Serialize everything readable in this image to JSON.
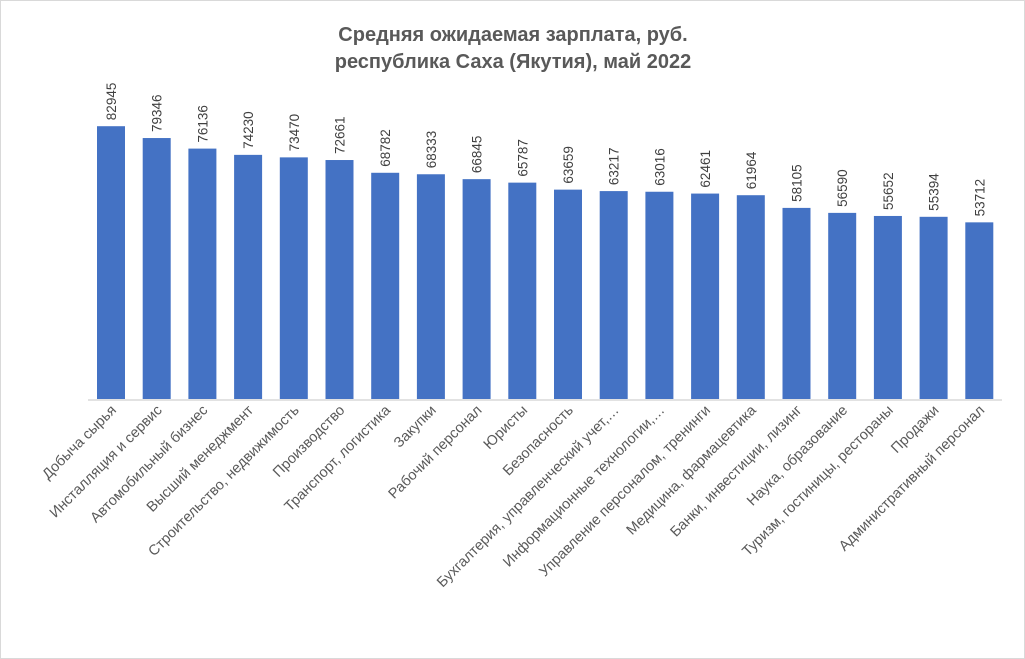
{
  "chart_data": {
    "type": "bar",
    "title": [
      "Средняя ожидаемая зарплата, руб.",
      "республика Саха (Якутия),  май 2022"
    ],
    "xlabel": "",
    "ylabel": "",
    "ylim": [
      0,
      90000
    ],
    "grid": false,
    "legend": "none",
    "bar_color": "#4472c4",
    "categories": [
      "Добыча сырья",
      "Инсталляция  и сервис",
      "Автомобильный бизнес",
      "Высший менеджмент",
      "Строительство, недвижимость",
      "Производство",
      "Транспорт, логистика",
      "Закупки",
      "Рабочий персонал",
      "Юристы",
      "Безопасность",
      "Бухгалтерия,  управленческий учет,…",
      "Информационные технологии,…",
      "Управление персоналом, тренинги",
      "Медицина, фармацевтика",
      "Банки, инвестиции, лизинг",
      "Наука, образование",
      "Туризм, гостиницы, рестораны",
      "Продажи",
      "Административный персонал"
    ],
    "values": [
      82945,
      79346,
      76136,
      74230,
      73470,
      72661,
      68782,
      68333,
      66845,
      65787,
      63659,
      63217,
      63016,
      62461,
      61964,
      58105,
      56590,
      55652,
      55394,
      53712
    ]
  }
}
